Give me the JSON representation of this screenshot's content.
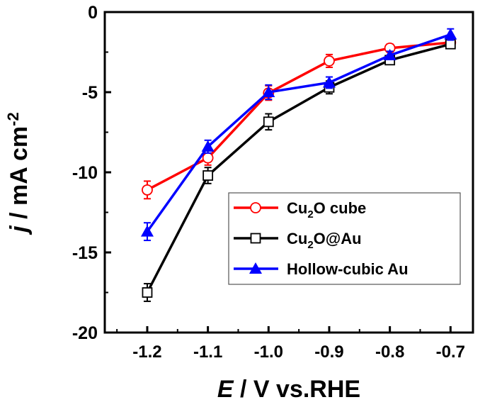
{
  "chart_data": {
    "type": "line",
    "xlabel_italic": "E",
    "xlabel_rest": " / V vs.RHE",
    "ylabel_italic": "j",
    "ylabel_rest": " / mA cm",
    "ylabel_sup": "-2",
    "x": [
      -1.2,
      -1.1,
      -1.0,
      -0.9,
      -0.8,
      -0.7
    ],
    "xticks": [
      "-1.2",
      "-1.1",
      "-1.0",
      "-0.9",
      "-0.8",
      "-0.7"
    ],
    "yticks": [
      "0",
      "-5",
      "-10",
      "-15",
      "-20"
    ],
    "ytick_values": [
      0,
      -5,
      -10,
      -15,
      -20
    ],
    "xlim": [
      -1.27,
      -0.663
    ],
    "ylim": [
      -20,
      0
    ],
    "grid": false,
    "legend_position": "center-right",
    "series": [
      {
        "name_main": "Cu",
        "name_sub": "2",
        "name_rest": "O cube",
        "color": "#ff0000",
        "marker": "open-circle",
        "values": [
          -11.1,
          -9.1,
          -5.05,
          -3.05,
          -2.25,
          -1.9
        ],
        "errors": [
          0.55,
          0.45,
          0.45,
          0.4,
          0.25,
          0.2
        ]
      },
      {
        "name_main": "Cu",
        "name_sub": "2",
        "name_rest": "O@Au",
        "color": "#000000",
        "marker": "open-square",
        "values": [
          -17.5,
          -10.2,
          -6.85,
          -4.7,
          -3.0,
          -2.0
        ],
        "errors": [
          0.55,
          0.5,
          0.5,
          0.4,
          0.25,
          0.2
        ]
      },
      {
        "name_main": "Hollow-cubic Au",
        "name_sub": "",
        "name_rest": "",
        "color": "#0000ff",
        "marker": "filled-triangle",
        "values": [
          -13.7,
          -8.4,
          -5.0,
          -4.4,
          -2.7,
          -1.4
        ],
        "errors": [
          0.55,
          0.4,
          0.45,
          0.35,
          0.25,
          0.35
        ]
      }
    ]
  }
}
